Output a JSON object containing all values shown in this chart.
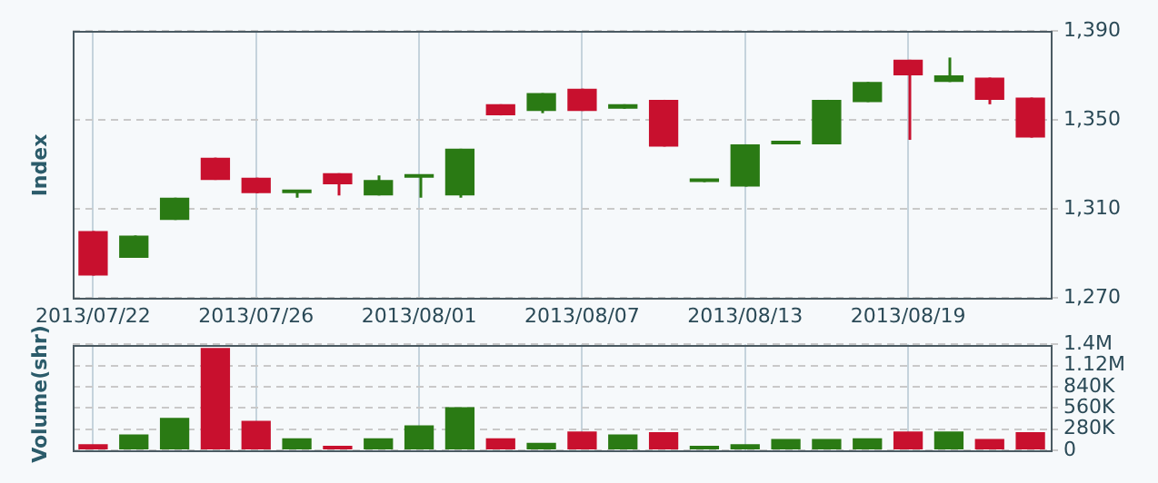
{
  "chart_data": [
    {
      "type": "candlestick",
      "ylabel": "Index",
      "categories": [
        "2013/07/22",
        null,
        null,
        null,
        "2013/07/26",
        null,
        null,
        null,
        "2013/08/01",
        null,
        null,
        null,
        "2013/08/07",
        null,
        null,
        null,
        "2013/08/13",
        null,
        null,
        null,
        "2013/08/19",
        null,
        null,
        null
      ],
      "ohlc": [
        [
          1300,
          1300,
          1280,
          1280
        ],
        [
          1288,
          1298,
          1288,
          1298
        ],
        [
          1305,
          1315,
          1305,
          1315
        ],
        [
          1333,
          1333,
          1323,
          1323
        ],
        [
          1324,
          1324,
          1317,
          1317
        ],
        [
          1317,
          1318,
          1315,
          1318
        ],
        [
          1326,
          1326,
          1316,
          1321
        ],
        [
          1316,
          1325,
          1316,
          1323
        ],
        [
          1324,
          1325,
          1315,
          1325
        ],
        [
          1316,
          1337,
          1315,
          1337
        ],
        [
          1357,
          1357,
          1352,
          1352
        ],
        [
          1354,
          1362,
          1353,
          1362
        ],
        [
          1364,
          1364,
          1354,
          1354
        ],
        [
          1355,
          1357,
          1355,
          1357
        ],
        [
          1359,
          1359,
          1338,
          1338
        ],
        [
          1322,
          1323,
          1322,
          1323
        ],
        [
          1320,
          1339,
          1320,
          1339
        ],
        [
          1339,
          1340,
          1339,
          1340
        ],
        [
          1339,
          1359,
          1339,
          1359
        ],
        [
          1358,
          1367,
          1358,
          1367
        ],
        [
          1377,
          1377,
          1341,
          1370
        ],
        [
          1367,
          1378,
          1367,
          1370
        ],
        [
          1369,
          1369,
          1357,
          1359
        ],
        [
          1360,
          1360,
          1342,
          1342
        ]
      ],
      "colors": [
        "#c8102e",
        "#2a7a14",
        "#2a7a14",
        "#c8102e",
        "#c8102e",
        "#2a7a14",
        "#c8102e",
        "#2a7a14",
        "#2a7a14",
        "#2a7a14",
        "#c8102e",
        "#2a7a14",
        "#c8102e",
        "#2a7a14",
        "#c8102e",
        "#2a7a14",
        "#2a7a14",
        "#2a7a14",
        "#2a7a14",
        "#2a7a14",
        "#c8102e",
        "#2a7a14",
        "#c8102e",
        "#c8102e"
      ],
      "ylim": [
        1270,
        1390
      ],
      "yticks": [
        {
          "value": 1270,
          "label": "1,270"
        },
        {
          "value": 1310,
          "label": "1,310"
        },
        {
          "value": 1350,
          "label": "1,350"
        },
        {
          "value": 1390,
          "label": "1,390"
        }
      ],
      "grid": true
    },
    {
      "type": "bar",
      "ylabel": "Volume(shr)",
      "categories": [
        "2013/07/22",
        null,
        null,
        null,
        "2013/07/26",
        null,
        null,
        null,
        "2013/08/01",
        null,
        null,
        null,
        "2013/08/07",
        null,
        null,
        null,
        "2013/08/13",
        null,
        null,
        null,
        "2013/08/19",
        null,
        null,
        null
      ],
      "values": [
        80000,
        210000,
        430000,
        1350000,
        390000,
        160000,
        60000,
        160000,
        330000,
        570000,
        160000,
        100000,
        250000,
        210000,
        240000,
        60000,
        80000,
        150000,
        150000,
        160000,
        250000,
        250000,
        150000,
        240000
      ],
      "colors": [
        "#c8102e",
        "#2a7a14",
        "#2a7a14",
        "#c8102e",
        "#c8102e",
        "#2a7a14",
        "#c8102e",
        "#2a7a14",
        "#2a7a14",
        "#2a7a14",
        "#c8102e",
        "#2a7a14",
        "#c8102e",
        "#2a7a14",
        "#c8102e",
        "#2a7a14",
        "#2a7a14",
        "#2a7a14",
        "#2a7a14",
        "#2a7a14",
        "#c8102e",
        "#2a7a14",
        "#c8102e",
        "#c8102e"
      ],
      "ylim": [
        0,
        1400000
      ],
      "yticks": [
        {
          "value": 0,
          "label": "0"
        },
        {
          "value": 280000,
          "label": "280K"
        },
        {
          "value": 560000,
          "label": "560K"
        },
        {
          "value": 840000,
          "label": "840K"
        },
        {
          "value": 1120000,
          "label": "1.12M"
        },
        {
          "value": 1400000,
          "label": "1.4M"
        }
      ],
      "grid": true,
      "tick_labels": "y"
    }
  ]
}
